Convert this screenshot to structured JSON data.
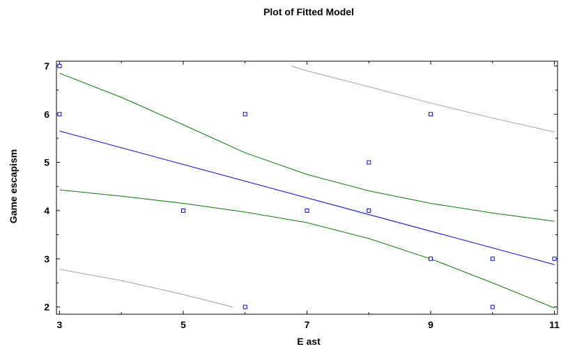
{
  "chart_data": {
    "type": "scatter",
    "title": "Plot of Fitted Model",
    "xlabel": "E ast",
    "ylabel": "Game escapism",
    "xlim": [
      2.95,
      11.05
    ],
    "ylim": [
      1.85,
      7.1
    ],
    "xticks": [
      3,
      5,
      7,
      9,
      11
    ],
    "yticks": [
      2,
      3,
      4,
      5,
      6,
      7
    ],
    "grid": false,
    "legend": "none",
    "points": [
      {
        "x": 3,
        "y": 7
      },
      {
        "x": 3,
        "y": 6
      },
      {
        "x": 5,
        "y": 4
      },
      {
        "x": 6,
        "y": 6
      },
      {
        "x": 6,
        "y": 2
      },
      {
        "x": 7,
        "y": 4
      },
      {
        "x": 8,
        "y": 5
      },
      {
        "x": 8,
        "y": 4
      },
      {
        "x": 9,
        "y": 6
      },
      {
        "x": 9,
        "y": 3
      },
      {
        "x": 10,
        "y": 3
      },
      {
        "x": 10,
        "y": 2
      },
      {
        "x": 11,
        "y": 3
      }
    ],
    "fitted_line": {
      "x": [
        3,
        11
      ],
      "y": [
        5.65,
        2.88
      ]
    },
    "confidence_upper": {
      "x": [
        3,
        4,
        5,
        6,
        7,
        8,
        9,
        10,
        11
      ],
      "y": [
        6.85,
        6.35,
        5.78,
        5.2,
        4.75,
        4.41,
        4.15,
        3.95,
        3.78
      ]
    },
    "confidence_lower": {
      "x": [
        3,
        4,
        5,
        6,
        7,
        8,
        9,
        10,
        11
      ],
      "y": [
        4.43,
        4.3,
        4.15,
        3.97,
        3.75,
        3.42,
        3.0,
        2.5,
        1.98
      ]
    },
    "prediction_upper": {
      "x": [
        6.75,
        7,
        8,
        9,
        10,
        11
      ],
      "y": [
        7.0,
        6.9,
        6.57,
        6.23,
        5.92,
        5.63
      ]
    },
    "prediction_lower": {
      "x": [
        3,
        4,
        5,
        5.8
      ],
      "y": [
        2.78,
        2.55,
        2.26,
        2.0
      ]
    },
    "colors": {
      "points": "#0000ff",
      "fitted_line": "#0000ff",
      "confidence": "#007f00",
      "prediction": "#a0a0a0",
      "axes": "#000000"
    }
  }
}
